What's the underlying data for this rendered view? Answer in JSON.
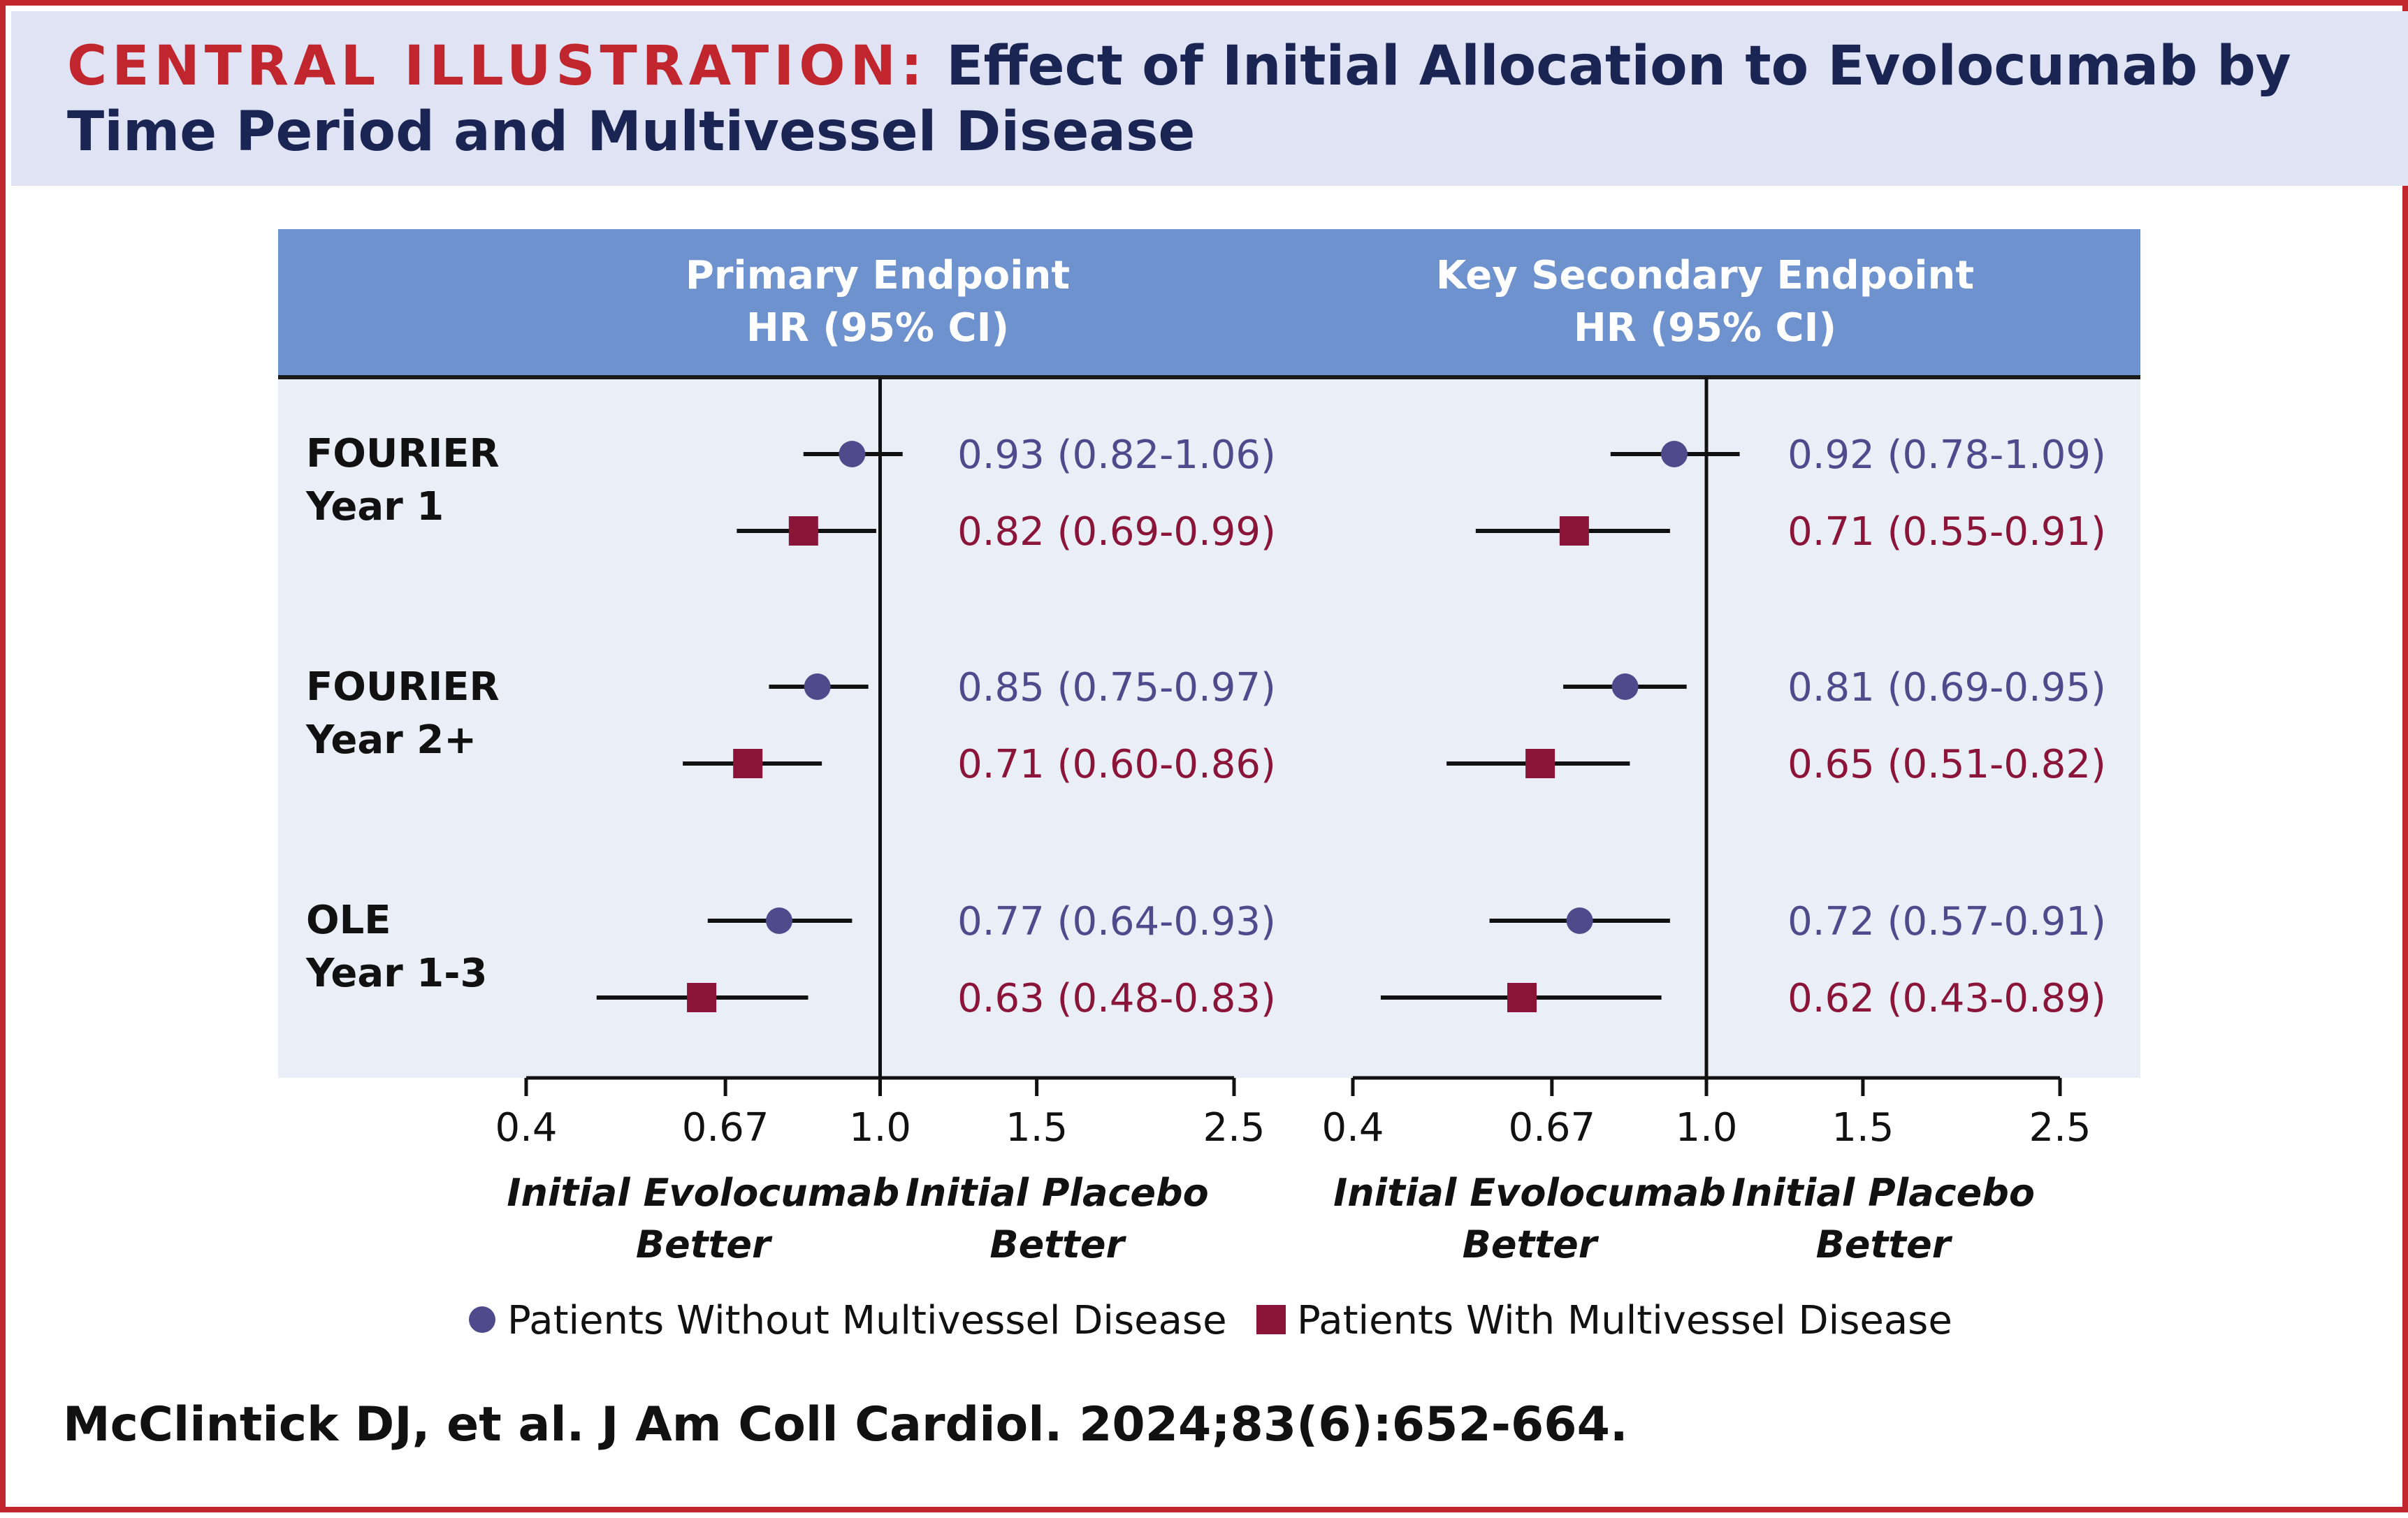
{
  "banner": {
    "label": "CENTRAL ILLUSTRATION:",
    "title": "Effect of Initial Allocation to Evolocumab by Time Period and Multivessel Disease"
  },
  "citation": "McClintick DJ, et al. J Am Coll Cardiol. 2024;83(6):652-664.",
  "colors": {
    "banner_bg": "#dfe3f3",
    "label_red": "#c1262e",
    "title_navy": "#1b2554",
    "header_blue": "#6e92ce",
    "panel_bg": "#eaeef7",
    "no_mvd": "#4f4a8c",
    "mvd": "#8a1538"
  },
  "chart_data": {
    "type": "forest",
    "x_scale": "log",
    "xlim": [
      0.4,
      2.5
    ],
    "reference_line": 1.0,
    "ticks": [
      {
        "value": 0.4,
        "label": "0.4"
      },
      {
        "value": 0.67,
        "label": "0.67"
      },
      {
        "value": 1.0,
        "label": "1.0"
      },
      {
        "value": 1.5,
        "label": "1.5"
      },
      {
        "value": 2.5,
        "label": "2.5"
      }
    ],
    "better_left": [
      "Initial Evolocumab",
      "Better"
    ],
    "better_right": [
      "Initial Placebo",
      "Better"
    ],
    "row_groups": [
      {
        "label_1": "FOURIER",
        "label_2": "Year 1"
      },
      {
        "label_1": "FOURIER",
        "label_2": "Year 2+"
      },
      {
        "label_1": "OLE",
        "label_2": "Year 1-3"
      }
    ],
    "legend": {
      "no_mvd": "Patients Without Multivessel Disease",
      "mvd": "Patients With Multivessel Disease"
    },
    "panels": [
      {
        "title": [
          "Primary Endpoint",
          "HR (95% CI)"
        ],
        "rows": [
          {
            "group": 0,
            "series": "no_mvd",
            "hr": 0.93,
            "lo": 0.82,
            "hi": 1.06,
            "text": "0.93 (0.82-1.06)"
          },
          {
            "group": 0,
            "series": "mvd",
            "hr": 0.82,
            "lo": 0.69,
            "hi": 0.99,
            "text": "0.82 (0.69-0.99)"
          },
          {
            "group": 1,
            "series": "no_mvd",
            "hr": 0.85,
            "lo": 0.75,
            "hi": 0.97,
            "text": "0.85 (0.75-0.97)"
          },
          {
            "group": 1,
            "series": "mvd",
            "hr": 0.71,
            "lo": 0.6,
            "hi": 0.86,
            "text": "0.71 (0.60-0.86)"
          },
          {
            "group": 2,
            "series": "no_mvd",
            "hr": 0.77,
            "lo": 0.64,
            "hi": 0.93,
            "text": "0.77 (0.64-0.93)"
          },
          {
            "group": 2,
            "series": "mvd",
            "hr": 0.63,
            "lo": 0.48,
            "hi": 0.83,
            "text": "0.63 (0.48-0.83)"
          }
        ]
      },
      {
        "title": [
          "Key Secondary  Endpoint",
          "HR (95% CI)"
        ],
        "rows": [
          {
            "group": 0,
            "series": "no_mvd",
            "hr": 0.92,
            "lo": 0.78,
            "hi": 1.09,
            "text": "0.92 (0.78-1.09)"
          },
          {
            "group": 0,
            "series": "mvd",
            "hr": 0.71,
            "lo": 0.55,
            "hi": 0.91,
            "text": "0.71 (0.55-0.91)"
          },
          {
            "group": 1,
            "series": "no_mvd",
            "hr": 0.81,
            "lo": 0.69,
            "hi": 0.95,
            "text": "0.81 (0.69-0.95)"
          },
          {
            "group": 1,
            "series": "mvd",
            "hr": 0.65,
            "lo": 0.51,
            "hi": 0.82,
            "text": "0.65 (0.51-0.82)"
          },
          {
            "group": 2,
            "series": "no_mvd",
            "hr": 0.72,
            "lo": 0.57,
            "hi": 0.91,
            "text": "0.72 (0.57-0.91)"
          },
          {
            "group": 2,
            "series": "mvd",
            "hr": 0.62,
            "lo": 0.43,
            "hi": 0.89,
            "text": "0.62 (0.43-0.89)"
          }
        ]
      }
    ]
  }
}
